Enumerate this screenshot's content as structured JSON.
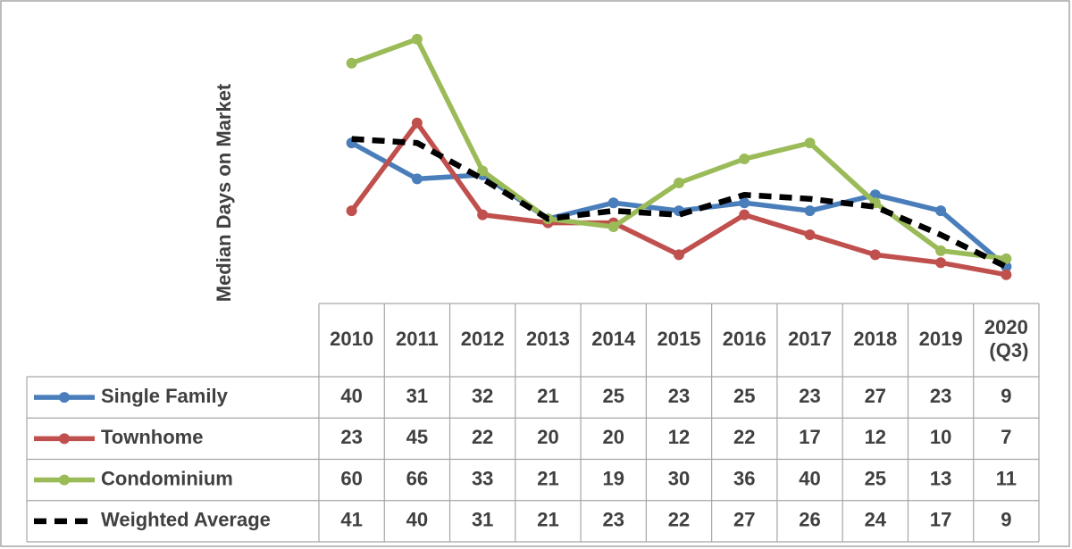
{
  "chart_data": {
    "type": "line",
    "y_label": "Median Days on Market",
    "categories": [
      "2010",
      "2011",
      "2012",
      "2013",
      "2014",
      "2015",
      "2016",
      "2017",
      "2018",
      "2019",
      "2020 (Q3)"
    ],
    "ylim": [
      0,
      70
    ],
    "series": [
      {
        "name": "Single Family",
        "color": "#4a7ebb",
        "line_style": "solid",
        "markers": true,
        "values": [
          40,
          31,
          32,
          21,
          25,
          23,
          25,
          23,
          27,
          23,
          9
        ]
      },
      {
        "name": "Townhome",
        "color": "#c0504d",
        "line_style": "solid",
        "markers": true,
        "values": [
          23,
          45,
          22,
          20,
          20,
          12,
          22,
          17,
          12,
          10,
          7
        ]
      },
      {
        "name": "Condominium",
        "color": "#9bbb59",
        "line_style": "solid",
        "markers": true,
        "values": [
          60,
          66,
          33,
          21,
          19,
          30,
          36,
          40,
          25,
          13,
          11
        ]
      },
      {
        "name": "Weighted Average",
        "color": "#000000",
        "line_style": "dashed",
        "markers": false,
        "values": [
          41,
          40,
          31,
          21,
          23,
          22,
          27,
          26,
          24,
          17,
          9
        ]
      }
    ]
  }
}
